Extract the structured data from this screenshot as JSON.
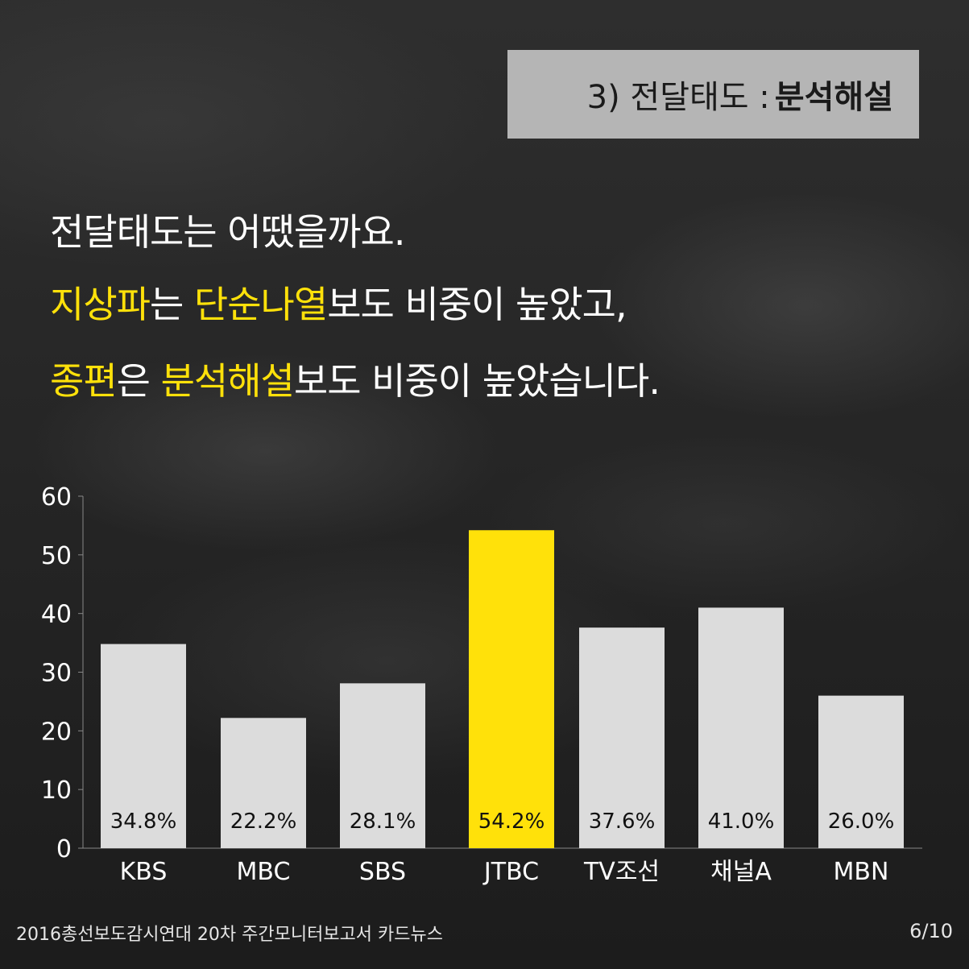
{
  "badge": {
    "prefix": "3) 전달태도 : ",
    "strong": "분석해설"
  },
  "headline": {
    "line1": "전달태도는 어땠을까요.",
    "line2": {
      "hl1": "지상파",
      "t1": "는 ",
      "hl2": "단순나열",
      "t2": "보도 비중이 높았고,"
    },
    "line3": {
      "hl1": "종편",
      "t1": "은 ",
      "hl2": "분석해설",
      "t2": "보도 비중이 높았습니다."
    }
  },
  "chart_data": {
    "type": "bar",
    "categories": [
      "KBS",
      "MBC",
      "SBS",
      "JTBC",
      "TV조선",
      "채널A",
      "MBN"
    ],
    "values": [
      34.8,
      22.2,
      28.1,
      54.2,
      37.6,
      41.0,
      26.0
    ],
    "data_labels": [
      "34.8%",
      "22.2%",
      "28.1%",
      "54.2%",
      "37.6%",
      "41.0%",
      "26.0%"
    ],
    "highlight_index": 3,
    "ylim": [
      0,
      60
    ],
    "yticks": [
      0,
      10,
      20,
      30,
      40,
      50,
      60
    ],
    "grid": false,
    "colors": {
      "bar": "#dcdcdc",
      "highlight": "#ffe10a",
      "axis": "#888888",
      "text": "#ffffff",
      "label": "#111111"
    }
  },
  "footer": {
    "source": "2016총선보도감시연대 20차 주간모니터보고서 카드뉴스",
    "page": "6/10"
  }
}
